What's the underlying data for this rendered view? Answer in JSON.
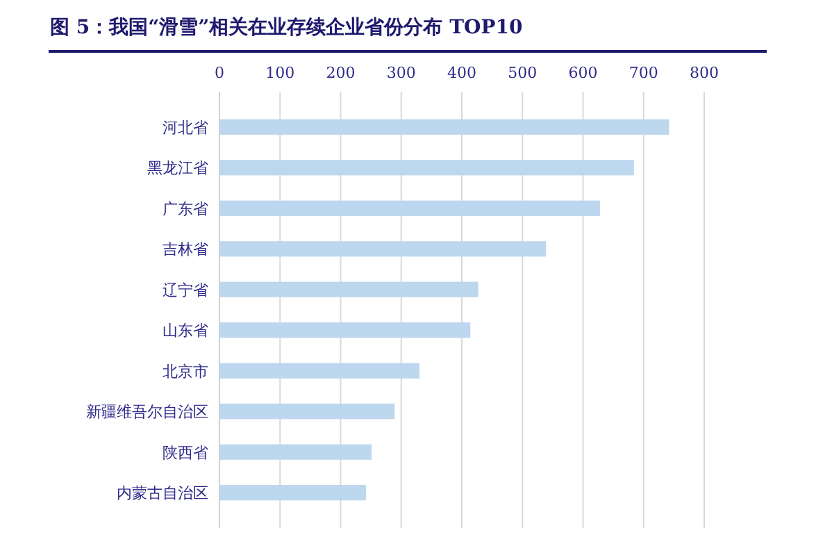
{
  "chart_data": {
    "type": "bar",
    "orientation": "horizontal",
    "title": "图 5：我国“滑雪”相关在业存续企业省份分布 TOP10",
    "categories": [
      "河北省",
      "黑龙江省",
      "广东省",
      "吉林省",
      "辽宁省",
      "山东省",
      "北京市",
      "新疆维吾尔自治区",
      "陕西省",
      "内蒙古自治区"
    ],
    "values": [
      742,
      684,
      628,
      539,
      427,
      414,
      330,
      289,
      251,
      242
    ],
    "color": "#bdd7ee",
    "xlim": [
      0,
      800
    ],
    "xticks": [
      0,
      100,
      200,
      300,
      400,
      500,
      600,
      700,
      800
    ],
    "grid": "x"
  }
}
